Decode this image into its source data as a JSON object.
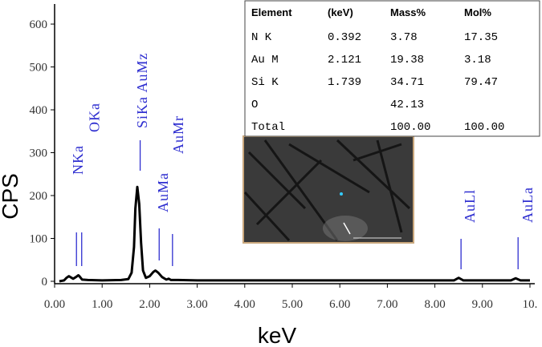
{
  "chart_data": {
    "type": "line",
    "x_label": "keV",
    "y_label": "CPS",
    "x": [
      0.1,
      0.2,
      0.25,
      0.3,
      0.39,
      0.45,
      0.5,
      0.52,
      0.58,
      0.7,
      1.0,
      1.4,
      1.55,
      1.62,
      1.67,
      1.7,
      1.74,
      1.78,
      1.82,
      1.86,
      1.92,
      2.0,
      2.08,
      2.12,
      2.18,
      2.26,
      2.35,
      2.4,
      2.45,
      2.6,
      3,
      4,
      5,
      6,
      7,
      8,
      8.4,
      8.5,
      8.6,
      9,
      9.6,
      9.7,
      9.8,
      10
    ],
    "values": [
      0,
      2,
      8,
      12,
      6,
      10,
      14,
      12,
      4,
      3,
      2,
      3,
      5,
      20,
      80,
      170,
      220,
      180,
      90,
      25,
      8,
      12,
      22,
      25,
      20,
      10,
      4,
      6,
      3,
      3,
      2,
      2,
      2,
      2,
      2,
      2,
      2,
      8,
      2,
      2,
      2,
      7,
      2,
      2
    ],
    "color": "#000000",
    "xlim": [
      0,
      10
    ],
    "ylim": [
      0,
      630
    ],
    "xticks": [
      {
        "value": 0,
        "label": "0.00"
      },
      {
        "value": 1,
        "label": "1.00"
      },
      {
        "value": 2,
        "label": "2.00"
      },
      {
        "value": 3,
        "label": "3.00"
      },
      {
        "value": 4,
        "label": "4.00"
      },
      {
        "value": 5,
        "label": "5.00"
      },
      {
        "value": 6,
        "label": "6.00"
      },
      {
        "value": 7,
        "label": "7.00"
      },
      {
        "value": 8,
        "label": "8.00"
      },
      {
        "value": 9,
        "label": "9.00"
      },
      {
        "value": 10,
        "label": "10."
      }
    ],
    "yticks": [
      0,
      100,
      200,
      300,
      400,
      500,
      600
    ],
    "annotation_color": "#2f2fd0",
    "annotations": [
      {
        "text": "NKa",
        "x": 0.49
      },
      {
        "text": "OKa",
        "x": 0.84
      },
      {
        "text": "SiKa AuMz",
        "x": 1.84
      },
      {
        "text": "AuMa",
        "x": 2.28
      },
      {
        "text": "AuMr",
        "x": 2.6
      },
      {
        "text": "AuLl",
        "x": 8.73
      },
      {
        "text": "AuLa",
        "x": 9.95
      }
    ],
    "markers": [
      0.46,
      0.57,
      1.8,
      2.2,
      2.48,
      8.55,
      9.75
    ]
  },
  "table": {
    "header": [
      "Element",
      "(keV)",
      "Mass%",
      "Mol%"
    ],
    "rows": [
      [
        "N K",
        "0.392",
        "3.78",
        "17.35"
      ],
      [
        "Au M",
        "2.121",
        "19.38",
        "3.18"
      ],
      [
        "Si K",
        "1.739",
        "34.71",
        "79.47"
      ],
      [
        "O",
        null,
        "42.13",
        null
      ],
      [
        "Total",
        null,
        "100.00",
        "100.00"
      ]
    ]
  }
}
